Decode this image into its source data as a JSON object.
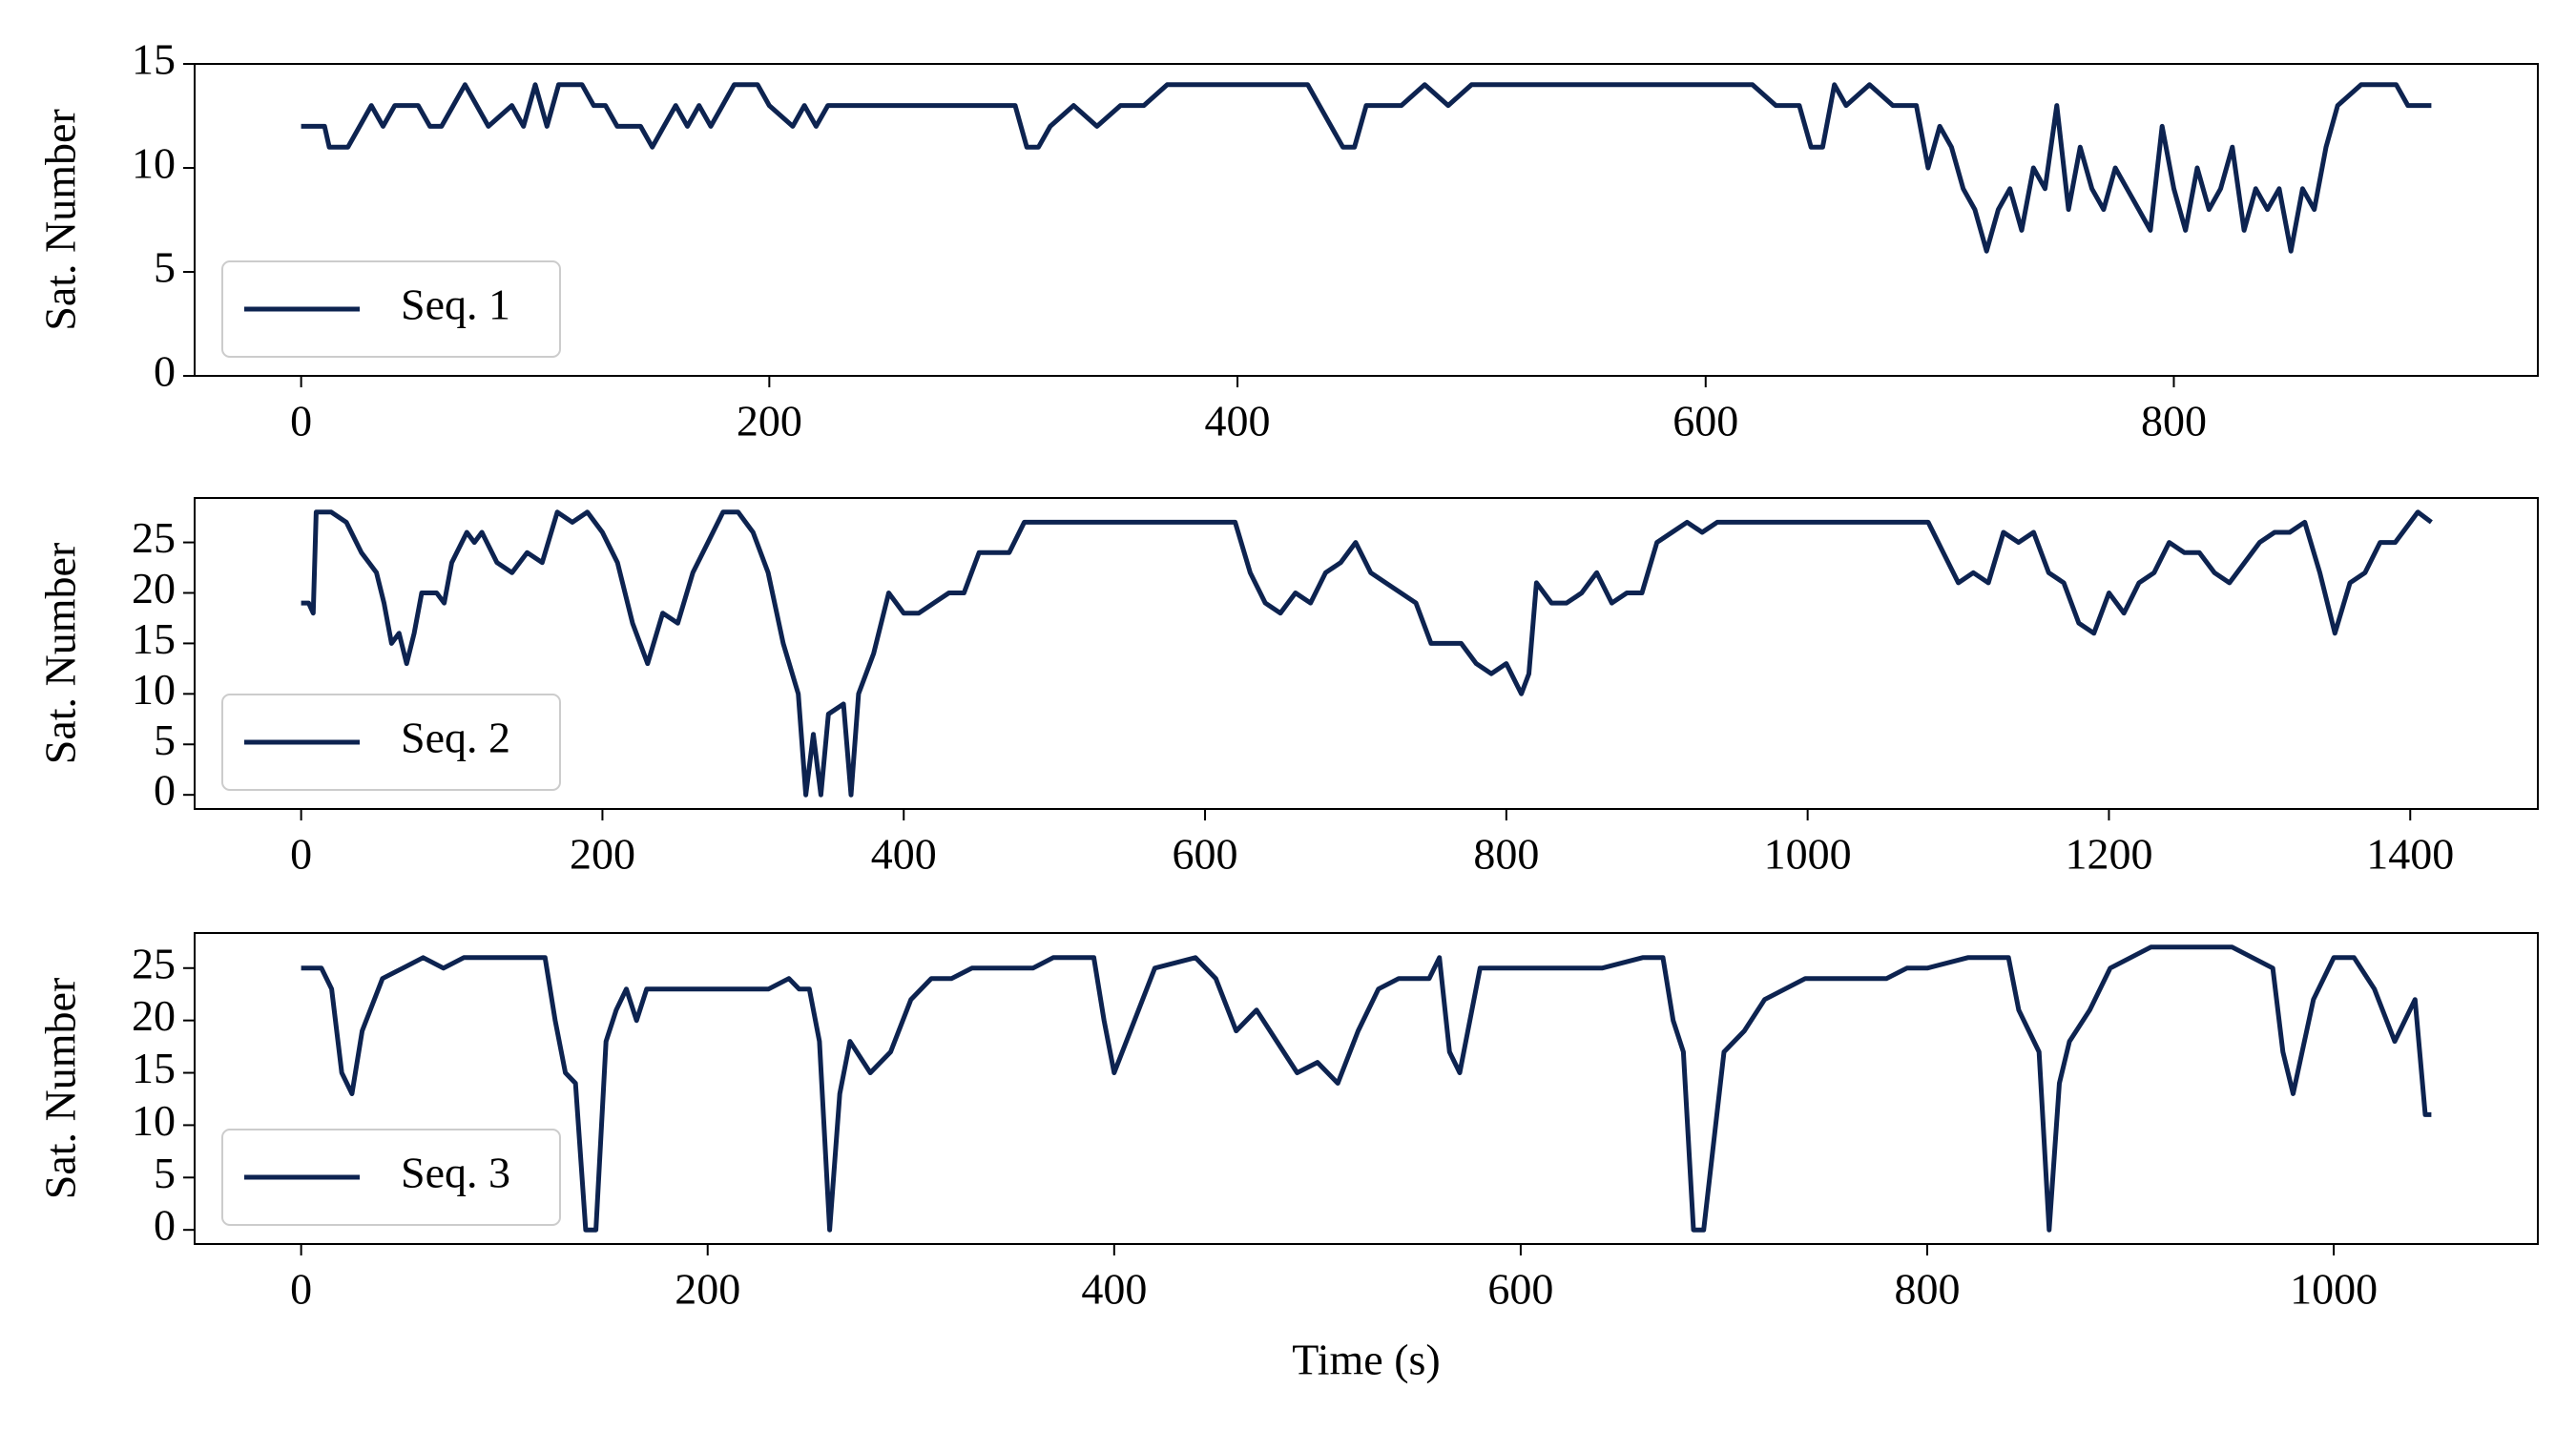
{
  "chart_data": [
    {
      "type": "line",
      "ylabel": "Sat. Number",
      "legend": "lower left",
      "xlim": [
        -45.5,
        955.5
      ],
      "xticks": [
        0,
        200,
        400,
        600,
        800
      ],
      "ylim": [
        0,
        15
      ],
      "yticks": [
        0,
        5,
        10,
        15
      ],
      "x": [
        0,
        10,
        12,
        20,
        25,
        30,
        35,
        40,
        50,
        55,
        60,
        65,
        70,
        75,
        80,
        90,
        95,
        100,
        105,
        110,
        120,
        125,
        130,
        135,
        140,
        145,
        150,
        155,
        160,
        165,
        170,
        175,
        180,
        185,
        195,
        200,
        210,
        215,
        220,
        225,
        240,
        300,
        305,
        310,
        315,
        320,
        330,
        340,
        350,
        360,
        370,
        400,
        430,
        440,
        445,
        450,
        455,
        470,
        480,
        490,
        500,
        520,
        550,
        600,
        620,
        630,
        640,
        645,
        650,
        655,
        660,
        670,
        680,
        690,
        695,
        700,
        705,
        710,
        715,
        720,
        725,
        730,
        735,
        740,
        745,
        750,
        755,
        760,
        765,
        770,
        775,
        780,
        785,
        790,
        795,
        800,
        805,
        810,
        815,
        820,
        825,
        830,
        835,
        840,
        845,
        850,
        855,
        860,
        865,
        870,
        880,
        895,
        900,
        910
      ],
      "series": [
        {
          "name": "Seq. 1",
          "color": "#0d2350",
          "values": [
            12,
            12,
            11,
            11,
            12,
            13,
            12,
            13,
            13,
            12,
            12,
            13,
            14,
            13,
            12,
            13,
            12,
            14,
            12,
            14,
            14,
            13,
            13,
            12,
            12,
            12,
            11,
            12,
            13,
            12,
            13,
            12,
            13,
            14,
            14,
            13,
            12,
            13,
            12,
            13,
            13,
            13,
            13,
            11,
            11,
            12,
            13,
            12,
            13,
            13,
            14,
            14,
            14,
            12,
            11,
            11,
            13,
            13,
            14,
            13,
            14,
            14,
            14,
            14,
            14,
            13,
            13,
            11,
            11,
            14,
            13,
            14,
            13,
            13,
            10,
            12,
            11,
            9,
            8,
            6,
            8,
            9,
            7,
            10,
            9,
            13,
            8,
            11,
            9,
            8,
            10,
            9,
            8,
            7,
            12,
            9,
            7,
            10,
            8,
            9,
            11,
            7,
            9,
            8,
            9,
            6,
            9,
            8,
            11,
            13,
            14,
            14,
            13,
            13
          ]
        }
      ]
    },
    {
      "type": "line",
      "ylabel": "Sat. Number",
      "legend": "lower left",
      "xlim": [
        -70.7,
        1484.7
      ],
      "xticks": [
        0,
        200,
        400,
        600,
        800,
        1000,
        1200,
        1400
      ],
      "ylim": [
        -1.4,
        29.4
      ],
      "yticks": [
        0,
        5,
        10,
        15,
        20,
        25
      ],
      "x": [
        0,
        5,
        8,
        10,
        20,
        30,
        40,
        50,
        55,
        60,
        65,
        70,
        75,
        80,
        90,
        95,
        100,
        110,
        115,
        120,
        130,
        140,
        150,
        160,
        170,
        180,
        190,
        200,
        210,
        220,
        230,
        240,
        250,
        260,
        270,
        280,
        290,
        300,
        310,
        320,
        330,
        335,
        340,
        345,
        350,
        360,
        365,
        370,
        380,
        390,
        400,
        410,
        420,
        430,
        440,
        450,
        460,
        470,
        480,
        500,
        600,
        620,
        630,
        640,
        650,
        660,
        670,
        680,
        690,
        700,
        710,
        720,
        740,
        750,
        760,
        770,
        780,
        790,
        800,
        810,
        815,
        820,
        830,
        840,
        850,
        860,
        870,
        880,
        890,
        900,
        910,
        920,
        930,
        940,
        1000,
        1080,
        1090,
        1100,
        1110,
        1120,
        1130,
        1140,
        1150,
        1160,
        1170,
        1180,
        1190,
        1200,
        1210,
        1220,
        1230,
        1240,
        1250,
        1260,
        1270,
        1280,
        1290,
        1300,
        1310,
        1320,
        1330,
        1340,
        1350,
        1360,
        1370,
        1380,
        1390,
        1400,
        1405,
        1414
      ],
      "series": [
        {
          "name": "Seq. 2",
          "color": "#0d2350",
          "values": [
            19,
            19,
            18,
            28,
            28,
            27,
            24,
            22,
            19,
            15,
            16,
            13,
            16,
            20,
            20,
            19,
            23,
            26,
            25,
            26,
            23,
            22,
            24,
            23,
            28,
            27,
            28,
            26,
            23,
            17,
            13,
            18,
            17,
            22,
            25,
            28,
            28,
            26,
            22,
            15,
            10,
            0,
            6,
            0,
            8,
            9,
            0,
            10,
            14,
            20,
            18,
            18,
            19,
            20,
            20,
            24,
            24,
            24,
            27,
            27,
            27,
            27,
            22,
            19,
            18,
            20,
            19,
            22,
            23,
            25,
            22,
            21,
            19,
            15,
            15,
            15,
            13,
            12,
            13,
            10,
            12,
            21,
            19,
            19,
            20,
            22,
            19,
            20,
            20,
            25,
            26,
            27,
            26,
            27,
            27,
            27,
            24,
            21,
            22,
            21,
            26,
            25,
            26,
            22,
            21,
            17,
            16,
            20,
            18,
            21,
            22,
            25,
            24,
            24,
            22,
            21,
            23,
            25,
            26,
            26,
            27,
            22,
            16,
            21,
            22,
            25,
            25,
            27,
            28,
            27
          ]
        }
      ]
    },
    {
      "type": "line",
      "ylabel": "Sat. Number",
      "xlabel": "Time (s)",
      "legend": "lower left",
      "xlim": [
        -52.4,
        1100.4
      ],
      "xticks": [
        0,
        200,
        400,
        600,
        800,
        1000
      ],
      "ylim": [
        -1.35,
        28.35
      ],
      "yticks": [
        0,
        5,
        10,
        15,
        20,
        25
      ],
      "x": [
        0,
        10,
        15,
        20,
        25,
        30,
        40,
        50,
        60,
        70,
        80,
        120,
        125,
        130,
        135,
        140,
        145,
        150,
        155,
        160,
        165,
        170,
        200,
        230,
        240,
        245,
        250,
        255,
        260,
        265,
        270,
        280,
        290,
        300,
        310,
        320,
        330,
        360,
        370,
        390,
        395,
        400,
        410,
        420,
        440,
        450,
        460,
        470,
        480,
        490,
        500,
        510,
        520,
        530,
        540,
        555,
        560,
        565,
        570,
        580,
        600,
        640,
        660,
        670,
        675,
        680,
        685,
        690,
        700,
        710,
        720,
        740,
        760,
        780,
        790,
        800,
        820,
        840,
        845,
        855,
        860,
        865,
        870,
        880,
        890,
        900,
        910,
        950,
        960,
        970,
        975,
        980,
        990,
        1000,
        1010,
        1020,
        1030,
        1040,
        1045,
        1048
      ],
      "series": [
        {
          "name": "Seq. 3",
          "color": "#0d2350",
          "values": [
            25,
            25,
            23,
            15,
            13,
            19,
            24,
            25,
            26,
            25,
            26,
            26,
            20,
            15,
            14,
            0,
            0,
            18,
            21,
            23,
            20,
            23,
            23,
            23,
            24,
            23,
            23,
            18,
            0,
            13,
            18,
            15,
            17,
            22,
            24,
            24,
            25,
            25,
            26,
            26,
            20,
            15,
            20,
            25,
            26,
            24,
            19,
            21,
            18,
            15,
            16,
            14,
            19,
            23,
            24,
            24,
            26,
            17,
            15,
            25,
            25,
            25,
            26,
            26,
            20,
            17,
            0,
            0,
            17,
            19,
            22,
            24,
            24,
            24,
            25,
            25,
            26,
            26,
            21,
            17,
            0,
            14,
            18,
            21,
            25,
            26,
            27,
            27,
            26,
            25,
            17,
            13,
            22,
            26,
            26,
            23,
            18,
            22,
            11,
            11
          ]
        }
      ]
    }
  ]
}
